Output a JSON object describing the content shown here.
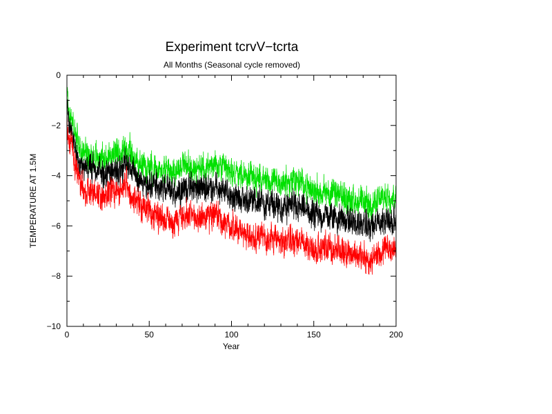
{
  "chart_data": {
    "type": "line",
    "title": "Experiment tcrvV−tcrta",
    "subtitle": "All Months (Seasonal cycle removed)",
    "xlabel": "Year",
    "ylabel": "TEMPERATURE AT 1.5M",
    "xlim": [
      0,
      200
    ],
    "ylim": [
      -10,
      0
    ],
    "xticks": [
      0,
      50,
      100,
      150,
      200
    ],
    "xtick_labels": [
      "0",
      "50",
      "100",
      "150",
      "200"
    ],
    "yticks": [
      0,
      -2,
      -4,
      -6,
      -8,
      -10
    ],
    "ytick_labels": [
      "0",
      "−2",
      "−4",
      "−6",
      "−8",
      "−10"
    ],
    "grid": false,
    "legend": "none",
    "series_trends": [
      {
        "color": "#00e000",
        "x": [
          0,
          1,
          3,
          5,
          8,
          12,
          20,
          30,
          36,
          45,
          55,
          65,
          70,
          80,
          90,
          100,
          110,
          120,
          130,
          140,
          150,
          160,
          170,
          180,
          185,
          190,
          195,
          200
        ],
        "y": [
          -0.4,
          -1.5,
          -1.7,
          -2.4,
          -2.9,
          -3.1,
          -3.3,
          -3.2,
          -3.0,
          -3.6,
          -3.7,
          -3.8,
          -3.6,
          -3.7,
          -3.6,
          -3.9,
          -4.0,
          -4.2,
          -4.3,
          -4.2,
          -4.6,
          -4.7,
          -4.9,
          -5.1,
          -5.2,
          -5.0,
          -4.8,
          -4.8
        ]
      },
      {
        "color": "#000000",
        "x": [
          0,
          1,
          3,
          5,
          8,
          12,
          20,
          30,
          36,
          45,
          55,
          65,
          70,
          80,
          90,
          100,
          110,
          120,
          130,
          140,
          150,
          160,
          170,
          180,
          185,
          190,
          195,
          200
        ],
        "y": [
          -1.2,
          -2.0,
          -2.2,
          -3.0,
          -3.6,
          -3.7,
          -3.9,
          -3.8,
          -3.6,
          -4.2,
          -4.4,
          -4.7,
          -4.5,
          -4.5,
          -4.4,
          -4.8,
          -5.0,
          -5.1,
          -5.3,
          -5.2,
          -5.6,
          -5.6,
          -5.8,
          -6.0,
          -6.0,
          -5.9,
          -5.7,
          -5.8
        ]
      },
      {
        "color": "#ff0000",
        "x": [
          0,
          1,
          3,
          5,
          8,
          12,
          20,
          30,
          36,
          45,
          55,
          65,
          70,
          80,
          90,
          100,
          110,
          120,
          130,
          140,
          150,
          160,
          170,
          180,
          185,
          190,
          195,
          200
        ],
        "y": [
          -1.8,
          -2.6,
          -2.8,
          -3.6,
          -4.3,
          -4.6,
          -4.7,
          -4.7,
          -4.4,
          -5.2,
          -5.6,
          -5.8,
          -5.6,
          -5.7,
          -5.6,
          -6.0,
          -6.4,
          -6.5,
          -6.6,
          -6.6,
          -6.9,
          -6.9,
          -7.0,
          -7.3,
          -7.4,
          -7.1,
          -6.9,
          -6.9
        ]
      }
    ]
  }
}
